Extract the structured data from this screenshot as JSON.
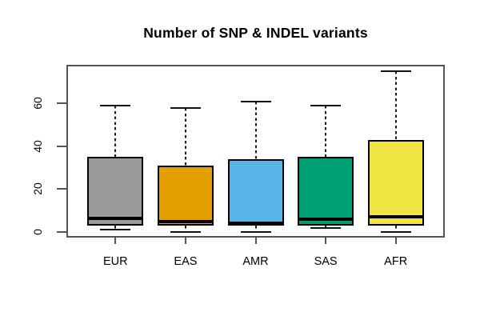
{
  "chart_data": {
    "type": "boxplot",
    "title": "Number of SNP & INDEL variants",
    "xlabel": "",
    "ylabel": "",
    "categories": [
      "EUR",
      "EAS",
      "AMR",
      "SAS",
      "AFR"
    ],
    "series": [
      {
        "name": "EUR",
        "color": "#999999",
        "whisker_low": 1,
        "q1": 3,
        "median": 6.5,
        "q3": 35,
        "whisker_high": 59
      },
      {
        "name": "EAS",
        "color": "#E69F00",
        "whisker_low": 0,
        "q1": 3,
        "median": 5,
        "q3": 31,
        "whisker_high": 58
      },
      {
        "name": "AMR",
        "color": "#56B4E9",
        "whisker_low": 0,
        "q1": 3,
        "median": 4,
        "q3": 34,
        "whisker_high": 61
      },
      {
        "name": "SAS",
        "color": "#009E73",
        "whisker_low": 2,
        "q1": 3,
        "median": 6,
        "q3": 35,
        "whisker_high": 59
      },
      {
        "name": "AFR",
        "color": "#F0E442",
        "whisker_low": 0,
        "q1": 3,
        "median": 7,
        "q3": 43,
        "whisker_high": 75
      }
    ],
    "yticks": [
      0,
      20,
      40,
      60
    ],
    "ylim": [
      -3,
      78
    ],
    "grid": false,
    "legend": null,
    "outliers": [],
    "whisker_style": "dashed",
    "box_border_color": "#000000",
    "median_color": "#000000",
    "axis_color": "#545454",
    "text_color": "#000000",
    "background_color": "#FFFFFF"
  }
}
